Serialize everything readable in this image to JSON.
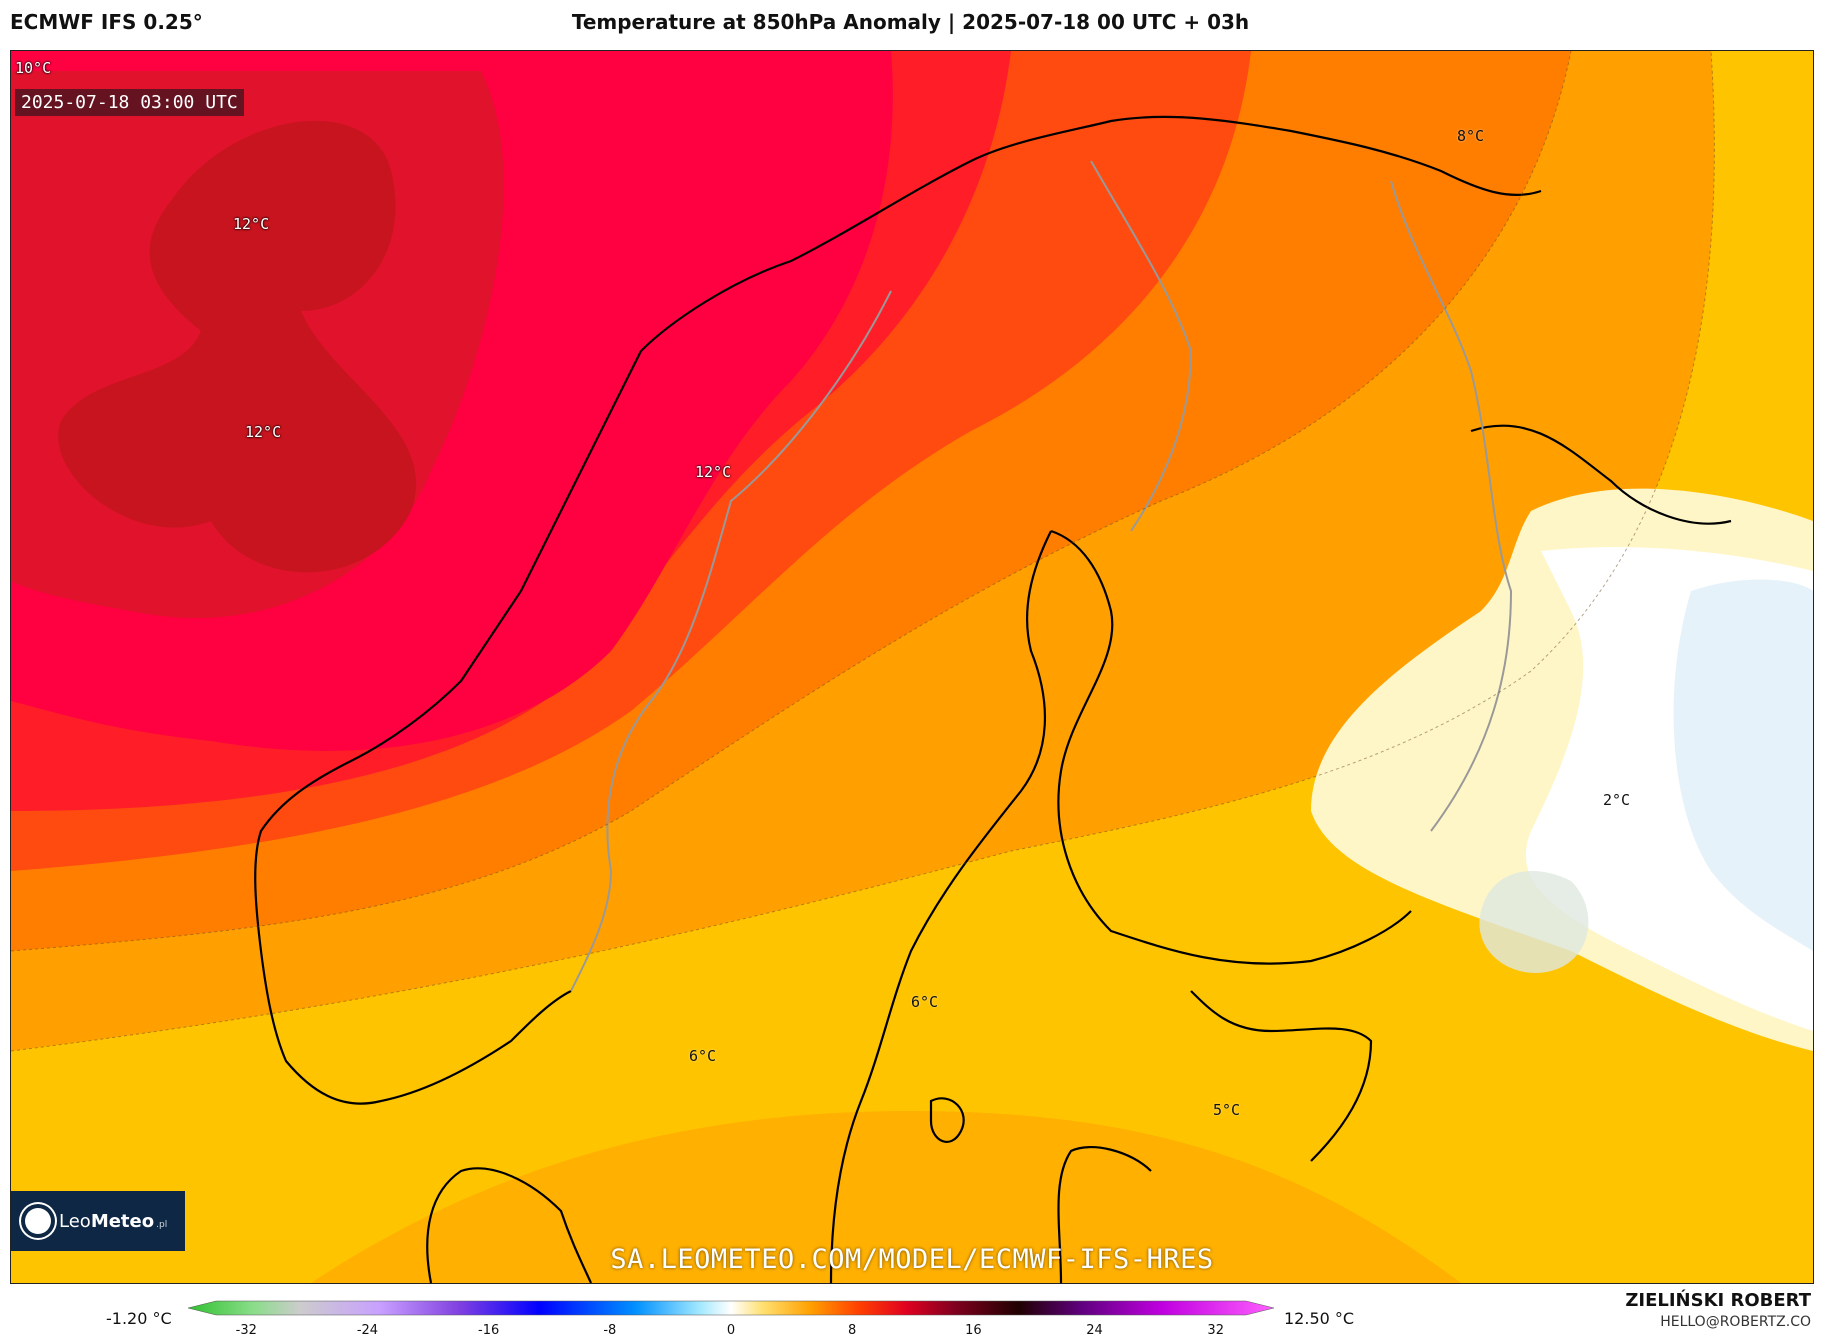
{
  "header": {
    "model": "ECMWF IFS 0.25°",
    "title": "Temperature at 850hPa Anomaly | 2025-07-18 00 UTC + 03h"
  },
  "map": {
    "valid_time": "2025-07-18 03:00 UTC",
    "contour_labels": [
      "10°C",
      "12°C",
      "12°C",
      "12°C",
      "8°C",
      "2°C",
      "6°C",
      "6°C",
      "5°C"
    ],
    "watermark": "SA.LEOMETEO.COM/MODEL/ECMWF-IFS-HRES",
    "colors": {
      "anom_12": "#c8141e",
      "anom_10": "#ff0040",
      "anom_9": "#ff1a28",
      "anom_8": "#ff3c10",
      "anom_7": "#ff6a00",
      "anom_6": "#ff8c00",
      "anom_5": "#ffaa00",
      "anom_4": "#ffc200",
      "anom_3": "#ffdc14",
      "anom_2": "#fff0a0",
      "anom_0": "#ffffff",
      "anom_neg": "#e6f2fa",
      "coast": "#000000",
      "border": "#999999"
    }
  },
  "logo": {
    "name_regular": "Leo",
    "name_bold": "Meteo",
    "tld": ".pl",
    "icon": "sun-icon"
  },
  "colorbar": {
    "min_label": "-1.20 °C",
    "max_label": "12.50 °C",
    "ticks": [
      "-32",
      "-24",
      "-16",
      "-8",
      "0",
      "8",
      "16",
      "24",
      "32"
    ],
    "tick_values": [
      -32,
      -24,
      -16,
      -8,
      0,
      8,
      16,
      24,
      32
    ],
    "range": [
      -34,
      34
    ],
    "stops": [
      {
        "v": -34,
        "c": "#30c030"
      },
      {
        "v": -30,
        "c": "#88dd88"
      },
      {
        "v": -27,
        "c": "#cccccc"
      },
      {
        "v": -22,
        "c": "#c8a0ff"
      },
      {
        "v": -17,
        "c": "#8040e0"
      },
      {
        "v": -12,
        "c": "#0000ff"
      },
      {
        "v": -6,
        "c": "#0090ff"
      },
      {
        "v": -2,
        "c": "#a0e8ff"
      },
      {
        "v": 0,
        "c": "#ffffff"
      },
      {
        "v": 2,
        "c": "#ffe070"
      },
      {
        "v": 5,
        "c": "#ffa000"
      },
      {
        "v": 8,
        "c": "#ff4000"
      },
      {
        "v": 11,
        "c": "#e00020"
      },
      {
        "v": 14,
        "c": "#800020"
      },
      {
        "v": 18,
        "c": "#200000"
      },
      {
        "v": 22,
        "c": "#600080"
      },
      {
        "v": 27,
        "c": "#c000e0"
      },
      {
        "v": 34,
        "c": "#ff60ff"
      }
    ]
  },
  "credits": {
    "author": "ZIELIŃSKI ROBERT",
    "email": "HELLO@ROBERTZ.CO"
  }
}
